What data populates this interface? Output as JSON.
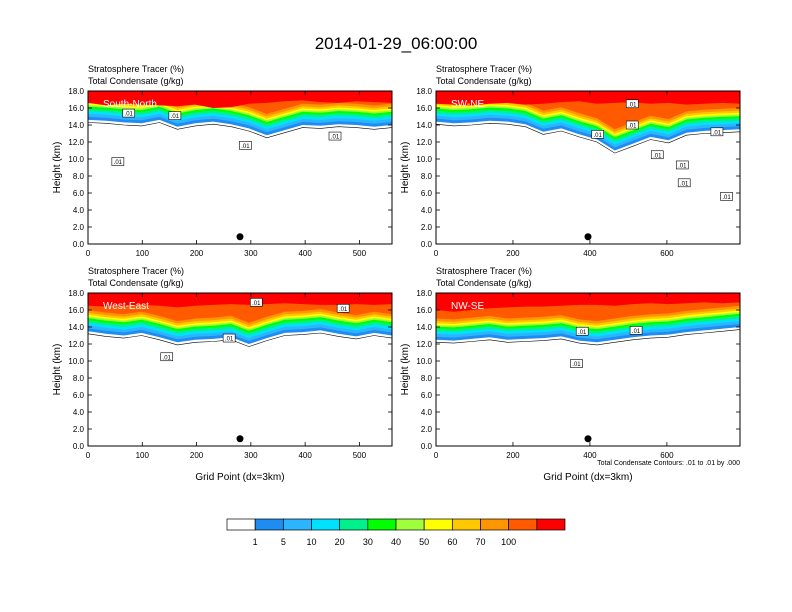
{
  "figure": {
    "title": "2014-01-29_06:00:00"
  },
  "colorbar": {
    "levels": [
      1,
      5,
      10,
      20,
      30,
      40,
      50,
      60,
      70,
      100
    ],
    "colors": [
      "#ffffff",
      "#1e8cf0",
      "#2db4ff",
      "#00e1ff",
      "#00f08c",
      "#00ff00",
      "#a0ff3c",
      "#ffff00",
      "#ffc800",
      "#ff9600",
      "#ff5a00",
      "#ff0000"
    ]
  },
  "chart_data": [
    {
      "type": "contour",
      "panel_label": "South-North",
      "title_line1": "Stratosphere Tracer   (%)",
      "title_line2": "Total Condensate   (g/kg)",
      "ylabel": "Height (km)",
      "xlabel": "",
      "footnote": "",
      "xlim": [
        0,
        560
      ],
      "ylim": [
        0,
        18
      ],
      "xticks": [
        0,
        100,
        200,
        300,
        400,
        500
      ],
      "yticks": [
        "0.0",
        "2.0",
        "4.0",
        "6.0",
        "8.0",
        "10.0",
        "12.0",
        "14.0",
        "16.0",
        "18.0"
      ],
      "marker_x": 280,
      "tracer_base_km": [
        14.6,
        14.5,
        14.3,
        14.2,
        14.6,
        13.8,
        14.2,
        14.4,
        14.1,
        13.6,
        12.8,
        13.4,
        14.0,
        13.9,
        14.1,
        14.0,
        13.8,
        14.0
      ],
      "red_base_km": [
        16.6,
        16.3,
        16.5,
        16.4,
        16.3,
        16.2,
        16.4,
        16.0,
        16.1,
        16.5,
        16.6,
        16.8,
        16.9,
        16.7,
        16.6,
        16.8,
        16.7,
        16.6
      ],
      "contour_labels": [
        {
          "text": ".01",
          "x": 75,
          "y": 15.4
        },
        {
          "text": ".01",
          "x": 160,
          "y": 15.1
        },
        {
          "text": ".01",
          "x": 55,
          "y": 9.7
        },
        {
          "text": ".01",
          "x": 290,
          "y": 11.6
        },
        {
          "text": ".01",
          "x": 455,
          "y": 12.7
        }
      ]
    },
    {
      "type": "contour",
      "panel_label": "SW-NE",
      "title_line1": "Stratosphere Tracer   (%)",
      "title_line2": "Total Condensate   (g/kg)",
      "ylabel": "Height (km)",
      "xlabel": "",
      "footnote": "",
      "xlim": [
        0,
        790
      ],
      "ylim": [
        0,
        18
      ],
      "xticks": [
        0,
        200,
        400,
        600
      ],
      "yticks": [
        "0.0",
        "2.0",
        "4.0",
        "6.0",
        "8.0",
        "10.0",
        "12.0",
        "14.0",
        "16.0",
        "18.0"
      ],
      "marker_x": 395,
      "tracer_base_km": [
        14.4,
        14.2,
        14.3,
        14.5,
        14.4,
        14.1,
        13.2,
        13.6,
        12.9,
        12.3,
        11.0,
        11.8,
        12.6,
        12.2,
        13.1,
        13.3,
        13.4,
        13.5
      ],
      "red_base_km": [
        16.5,
        16.4,
        16.3,
        16.5,
        16.6,
        16.4,
        16.5,
        16.7,
        16.8,
        16.5,
        16.6,
        16.7,
        16.5,
        16.6,
        16.4,
        16.5,
        16.6,
        16.5
      ],
      "contour_labels": [
        {
          "text": ".01",
          "x": 510,
          "y": 14.0
        },
        {
          "text": ".01",
          "x": 420,
          "y": 12.9
        },
        {
          "text": ".01",
          "x": 575,
          "y": 10.5
        },
        {
          "text": ".01",
          "x": 640,
          "y": 9.3
        },
        {
          "text": ".01",
          "x": 730,
          "y": 13.2
        },
        {
          "text": ".01",
          "x": 645,
          "y": 7.2
        },
        {
          "text": ".01",
          "x": 755,
          "y": 5.6
        },
        {
          "text": ".01",
          "x": 510,
          "y": 16.5
        }
      ]
    },
    {
      "type": "contour",
      "panel_label": "West-East",
      "title_line1": "Stratosphere Tracer   (%)",
      "title_line2": "Total Condensate   (g/kg)",
      "ylabel": "Height (km)",
      "xlabel": "Grid Point (dx=3km)",
      "footnote": "",
      "xlim": [
        0,
        560
      ],
      "ylim": [
        0,
        18
      ],
      "xticks": [
        0,
        100,
        200,
        300,
        400,
        500
      ],
      "yticks": [
        "0.0",
        "2.0",
        "4.0",
        "6.0",
        "8.0",
        "10.0",
        "12.0",
        "14.0",
        "16.0",
        "18.0"
      ],
      "marker_x": 280,
      "tracer_base_km": [
        13.5,
        13.2,
        13.0,
        13.3,
        12.8,
        12.2,
        12.5,
        12.6,
        12.8,
        12.0,
        12.7,
        13.3,
        13.4,
        13.6,
        13.2,
        12.9,
        13.3,
        13.0
      ],
      "red_base_km": [
        16.5,
        16.4,
        16.5,
        16.6,
        16.5,
        16.3,
        16.5,
        16.6,
        16.7,
        16.6,
        16.7,
        16.8,
        16.7,
        16.6,
        16.6,
        16.7,
        16.6,
        16.7
      ],
      "contour_labels": [
        {
          "text": ".01",
          "x": 260,
          "y": 12.7
        },
        {
          "text": ".01",
          "x": 310,
          "y": 16.9
        },
        {
          "text": ".01",
          "x": 470,
          "y": 16.2
        },
        {
          "text": ".01",
          "x": 145,
          "y": 10.5
        }
      ]
    },
    {
      "type": "contour",
      "panel_label": "NW-SE",
      "title_line1": "Stratosphere Tracer   (%)",
      "title_line2": "Total Condensate   (g/kg)",
      "ylabel": "Height (km)",
      "xlabel": "Grid Point (dx=3km)",
      "footnote": "Total Condensate Contours: .01 to .01 by .000",
      "xlim": [
        0,
        790
      ],
      "ylim": [
        0,
        18
      ],
      "xticks": [
        0,
        200,
        400,
        600
      ],
      "yticks": [
        "0.0",
        "2.0",
        "4.0",
        "6.0",
        "8.0",
        "10.0",
        "12.0",
        "14.0",
        "16.0",
        "18.0"
      ],
      "marker_x": 395,
      "tracer_base_km": [
        12.5,
        12.4,
        12.6,
        12.8,
        12.5,
        12.6,
        12.7,
        12.9,
        12.4,
        12.2,
        12.5,
        12.8,
        13.0,
        13.1,
        13.4,
        13.6,
        13.8,
        14.0
      ],
      "red_base_km": [
        16.0,
        15.8,
        16.0,
        16.2,
        16.3,
        16.4,
        16.4,
        16.5,
        16.6,
        16.6,
        16.5,
        16.7,
        16.8,
        16.7,
        16.8,
        16.9,
        16.8,
        16.9
      ],
      "contour_labels": [
        {
          "text": ".01",
          "x": 380,
          "y": 13.5
        },
        {
          "text": ".01",
          "x": 520,
          "y": 13.6
        },
        {
          "text": ".01",
          "x": 365,
          "y": 9.7
        }
      ]
    }
  ]
}
